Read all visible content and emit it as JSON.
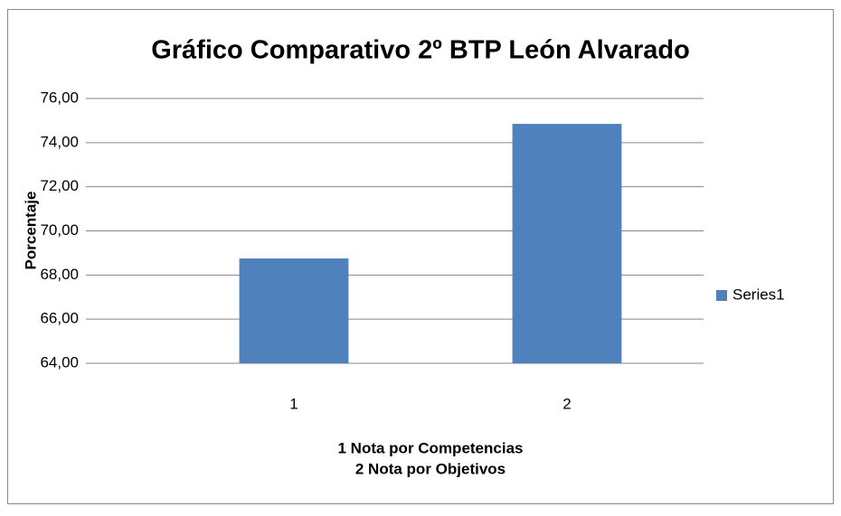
{
  "chart_data": {
    "type": "bar",
    "title": "Gráfico Comparativo 2º BTP León Alvarado",
    "y_label": "Porcentaje",
    "x_label": [
      "1 Nota por Competencias",
      "2 Nota por Objetivos"
    ],
    "categories": [
      "1",
      "2"
    ],
    "series": [
      {
        "name": "Series1",
        "color": "#4f81bd",
        "values": [
          68.75,
          74.85
        ]
      }
    ],
    "ylim": [
      64,
      76
    ],
    "yticks": [
      {
        "value": 64,
        "label": "64,00"
      },
      {
        "value": 66,
        "label": "66,00"
      },
      {
        "value": 68,
        "label": "68,00"
      },
      {
        "value": 70,
        "label": "70,00"
      },
      {
        "value": 72,
        "label": "72,00"
      },
      {
        "value": 74,
        "label": "74,00"
      },
      {
        "value": 76,
        "label": "76,00"
      }
    ],
    "grid": true,
    "legend": "right"
  }
}
